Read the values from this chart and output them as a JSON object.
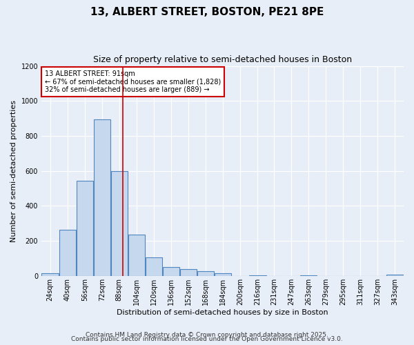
{
  "title1": "13, ALBERT STREET, BOSTON, PE21 8PE",
  "title2": "Size of property relative to semi-detached houses in Boston",
  "xlabel": "Distribution of semi-detached houses by size in Boston",
  "ylabel": "Number of semi-detached properties",
  "bin_labels": [
    "24sqm",
    "40sqm",
    "56sqm",
    "72sqm",
    "88sqm",
    "104sqm",
    "120sqm",
    "136sqm",
    "152sqm",
    "168sqm",
    "184sqm",
    "200sqm",
    "216sqm",
    "231sqm",
    "247sqm",
    "263sqm",
    "279sqm",
    "295sqm",
    "311sqm",
    "327sqm",
    "343sqm"
  ],
  "bin_left_edges": [
    16,
    32,
    48,
    64,
    80,
    96,
    112,
    128,
    144,
    160,
    176,
    192,
    208,
    223,
    239,
    255,
    271,
    287,
    303,
    319,
    335
  ],
  "bin_width": 16,
  "bar_values": [
    15,
    265,
    545,
    895,
    600,
    235,
    105,
    50,
    38,
    25,
    15,
    0,
    5,
    0,
    0,
    5,
    0,
    0,
    0,
    0,
    8
  ],
  "bar_facecolor": "#c5d8ee",
  "bar_edgecolor": "#4f86c0",
  "vline_x": 91,
  "vline_color": "#cc0000",
  "annotation_title": "13 ALBERT STREET: 91sqm",
  "annotation_line1": "← 67% of semi-detached houses are smaller (1,828)",
  "annotation_line2": "32% of semi-detached houses are larger (889) →",
  "annotation_box_edgecolor": "#cc0000",
  "annotation_box_facecolor": "#ffffff",
  "ylim": [
    0,
    1200
  ],
  "yticks": [
    0,
    200,
    400,
    600,
    800,
    1000,
    1200
  ],
  "footnote1": "Contains HM Land Registry data © Crown copyright and database right 2025.",
  "footnote2": "Contains public sector information licensed under the Open Government Licence v3.0.",
  "bg_color": "#e8eef7",
  "plot_bg_color": "#e8eef7",
  "title1_fontsize": 11,
  "title2_fontsize": 9,
  "axis_label_fontsize": 8,
  "tick_fontsize": 7,
  "footnote_fontsize": 6.5,
  "grid_color": "#ffffff",
  "annot_fontsize": 7
}
